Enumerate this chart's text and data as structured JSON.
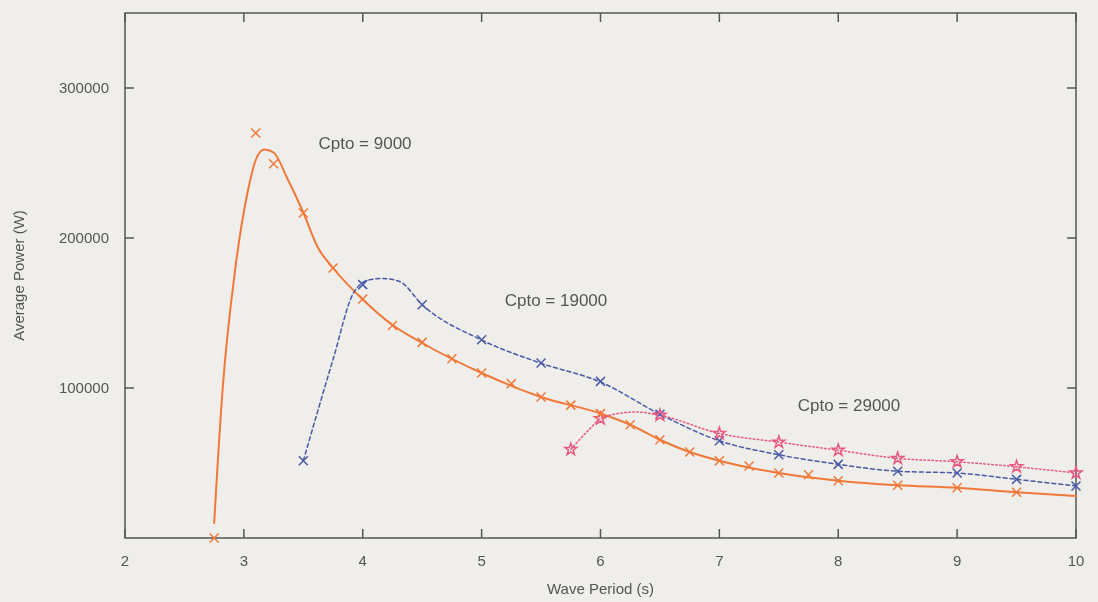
{
  "chart_data": {
    "type": "scatter",
    "xlabel": "Wave Period (s)",
    "ylabel": "Average Power (W)",
    "xlim": [
      2,
      10
    ],
    "xticks": [
      2,
      3,
      4,
      5,
      6,
      7,
      8,
      9,
      10
    ],
    "ylim": [
      0,
      350000
    ],
    "yticks": [
      100000,
      200000,
      300000
    ],
    "grid": false,
    "annotations": [
      "Cpto = 9000",
      "Cpto = 19000",
      "Cpto = 29000"
    ],
    "series": [
      {
        "type": "line",
        "color": "#f07838",
        "line_style": "solid",
        "marker": "none",
        "x": [
          2.75,
          2.82,
          2.93,
          3.03,
          3.1,
          3.17,
          3.25,
          3.37,
          3.5,
          3.62,
          3.75,
          4,
          4.25,
          4.5,
          5,
          5.5,
          6,
          6.25,
          6.5,
          6.75,
          7,
          7.5,
          8,
          8.5,
          9,
          9.5,
          10
        ],
        "values": [
          10000,
          98000,
          181000,
          230000,
          252000,
          259000,
          257000,
          239000,
          217000,
          194000,
          180000,
          159000,
          142000,
          130000,
          110000,
          94000,
          83000,
          75500,
          65500,
          57300,
          51500,
          43300,
          38200,
          35200,
          33500,
          30500,
          28000
        ]
      },
      {
        "type": "line",
        "color": "#4a5aa8",
        "line_style": "dashed",
        "marker": "none",
        "x": [
          3.5,
          3.75,
          3.92,
          4.05,
          4.17,
          4.31,
          4.5,
          5,
          5.5,
          6,
          6.5,
          7,
          7.5,
          8,
          8.5,
          9,
          9.5,
          10
        ],
        "values": [
          51500,
          119000,
          163000,
          172000,
          173000,
          171000,
          155500,
          132000,
          116500,
          104000,
          82500,
          64800,
          55500,
          49100,
          44500,
          43300,
          39100,
          34700
        ]
      },
      {
        "type": "line",
        "color": "#e85880",
        "line_style": "dotted",
        "marker": "none",
        "x": [
          5.75,
          5.9,
          6,
          6.15,
          6.3,
          6.5,
          7,
          7.5,
          8,
          8.5,
          9,
          9.5,
          10
        ],
        "values": [
          59000,
          72000,
          79500,
          83000,
          84000,
          81800,
          69700,
          63900,
          58500,
          53100,
          50800,
          47500,
          43300
        ]
      },
      {
        "color": "#4a5aa8",
        "marker": "cross",
        "x": [
          3.5,
          4,
          4.5,
          5,
          5.5,
          6,
          6.5,
          7,
          7.5,
          8,
          8.5,
          9,
          9.5,
          10
        ],
        "values": [
          51500,
          168900,
          155500,
          132200,
          116700,
          104400,
          82500,
          64800,
          55500,
          49100,
          44500,
          43300,
          39100,
          34700
        ]
      },
      {
        "color": "#e85880",
        "marker": "star",
        "x": [
          5.75,
          6,
          6.5,
          7,
          7.5,
          8,
          8.5,
          9,
          9.5,
          10
        ],
        "values": [
          59000,
          79500,
          81800,
          69700,
          63900,
          58500,
          53100,
          50800,
          47500,
          43300
        ]
      },
      {
        "color": "#f07838",
        "marker": "cross",
        "x": [
          2.75,
          3.1,
          3.25,
          3.5,
          3.75,
          4,
          4.25,
          4.5,
          4.75,
          5,
          5.25,
          5.5,
          5.75,
          6,
          6.25,
          6.5,
          6.75,
          7,
          7.25,
          7.5,
          7.75,
          8,
          8.5,
          9,
          9.5
        ],
        "values": [
          0,
          270000,
          249500,
          216700,
          180000,
          159300,
          141700,
          130400,
          119500,
          110000,
          102900,
          94000,
          88600,
          82900,
          75500,
          65500,
          57300,
          51500,
          48000,
          43300,
          42200,
          38200,
          35200,
          33500,
          30500
        ]
      }
    ]
  }
}
